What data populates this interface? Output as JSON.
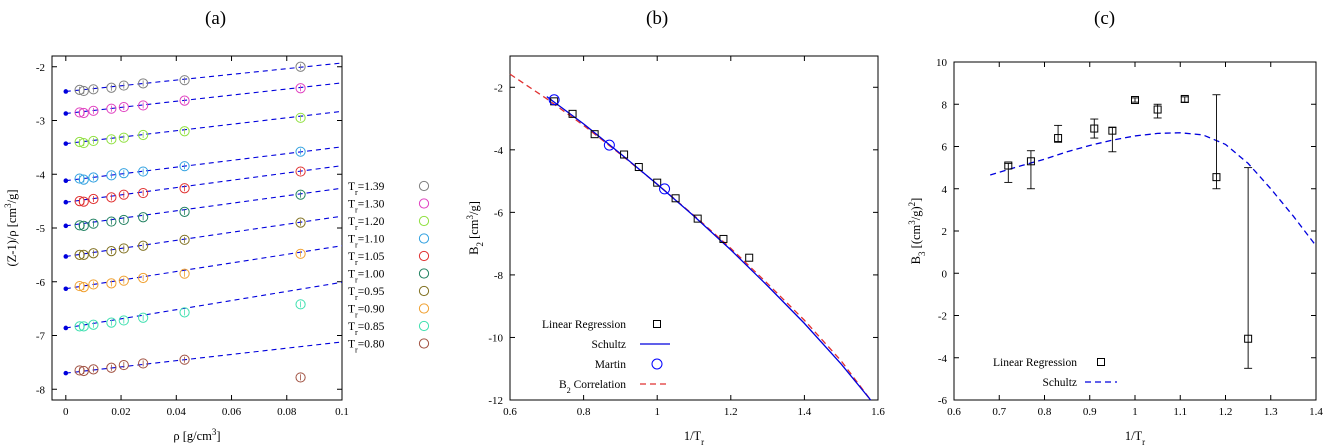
{
  "panels": {
    "a": "(a)",
    "b": "(b)",
    "c": "(c)"
  },
  "chart_data": [
    {
      "type": "scatter",
      "panel": "(a)",
      "xlabel": "ρ [g/cm³]",
      "ylabel": "(Z-1)/ρ [cm³/g]",
      "xlim": [
        -0.005,
        0.1
      ],
      "ylim": [
        -8.2,
        -1.8
      ],
      "x_ticks": [
        "0",
        "0.02",
        "0.04",
        "0.06",
        "0.08",
        "0.1"
      ],
      "y_ticks": [
        "-2",
        "-3",
        "-4",
        "-5",
        "-6",
        "-7",
        "-8"
      ],
      "legend_position": "right",
      "x": [
        0.005,
        0.0065,
        0.01,
        0.0165,
        0.021,
        0.028,
        0.043,
        0.085
      ],
      "series": [
        {
          "name": "Tr=1.39",
          "label_base": "T",
          "label_sub": "r",
          "label_rest": "=1.39",
          "color": "#7f7f7f",
          "intercept": -2.46,
          "slope": 5.3,
          "values": [
            -2.43,
            -2.45,
            -2.42,
            -2.39,
            -2.35,
            -2.31,
            -2.25,
            -2.0
          ]
        },
        {
          "name": "Tr=1.30",
          "label_base": "T",
          "label_sub": "r",
          "label_rest": "=1.30",
          "color": "#e040c0",
          "intercept": -2.87,
          "slope": 5.7,
          "values": [
            -2.85,
            -2.86,
            -2.82,
            -2.78,
            -2.75,
            -2.72,
            -2.63,
            -2.4
          ]
        },
        {
          "name": "Tr=1.20",
          "label_base": "T",
          "label_sub": "r",
          "label_rest": "=1.20",
          "color": "#90e040",
          "intercept": -3.43,
          "slope": 6.0,
          "values": [
            -3.4,
            -3.42,
            -3.38,
            -3.35,
            -3.32,
            -3.27,
            -3.2,
            -2.95
          ]
        },
        {
          "name": "Tr=1.10",
          "label_base": "T",
          "label_sub": "r",
          "label_rest": "=1.10",
          "color": "#30a0e0",
          "intercept": -4.12,
          "slope": 6.3,
          "values": [
            -4.08,
            -4.1,
            -4.06,
            -4.02,
            -3.98,
            -3.95,
            -3.85,
            -3.58
          ]
        },
        {
          "name": "Tr=1.05",
          "label_base": "T",
          "label_sub": "r",
          "label_rest": "=1.05",
          "color": "#e03030",
          "intercept": -4.52,
          "slope": 6.8,
          "values": [
            -4.5,
            -4.51,
            -4.46,
            -4.43,
            -4.38,
            -4.35,
            -4.26,
            -3.95
          ]
        },
        {
          "name": "Tr=1.00",
          "label_base": "T",
          "label_sub": "r",
          "label_rest": "=1.00",
          "color": "#208060",
          "intercept": -4.96,
          "slope": 7.0,
          "values": [
            -4.95,
            -4.96,
            -4.92,
            -4.88,
            -4.85,
            -4.8,
            -4.7,
            -4.38
          ]
        },
        {
          "name": "Tr=0.95",
          "label_base": "T",
          "label_sub": "r",
          "label_rest": "=0.95",
          "color": "#807020",
          "intercept": -5.53,
          "slope": 7.5,
          "values": [
            -5.5,
            -5.5,
            -5.47,
            -5.43,
            -5.38,
            -5.33,
            -5.22,
            -4.9
          ]
        },
        {
          "name": "Tr=0.90",
          "label_base": "T",
          "label_sub": "r",
          "label_rest": "=0.90",
          "color": "#f0a030",
          "intercept": -6.13,
          "slope": 8.0,
          "values": [
            -6.08,
            -6.1,
            -6.05,
            -6.03,
            -5.98,
            -5.93,
            -5.85,
            -5.48
          ]
        },
        {
          "name": "Tr=0.85",
          "label_base": "T",
          "label_sub": "r",
          "label_rest": "=0.85",
          "color": "#40e0b0",
          "intercept": -6.86,
          "slope": 8.5,
          "values": [
            -6.83,
            -6.83,
            -6.8,
            -6.76,
            -6.72,
            -6.67,
            -6.57,
            -6.42
          ]
        },
        {
          "name": "Tr=0.80",
          "label_base": "T",
          "label_sub": "r",
          "label_rest": "=0.80",
          "color": "#a05040",
          "intercept": -7.7,
          "slope": 5.8,
          "values": [
            -7.65,
            -7.66,
            -7.63,
            -7.6,
            -7.55,
            -7.52,
            -7.45,
            -7.78
          ]
        }
      ]
    },
    {
      "type": "line",
      "panel": "(b)",
      "xlabel": "1/Tr",
      "ylabel": "B₂ [cm³/g]",
      "xlim": [
        0.6,
        1.6
      ],
      "ylim": [
        -12,
        -1
      ],
      "x_ticks": [
        "0.6",
        "0.8",
        "1",
        "1.2",
        "1.4",
        "1.6"
      ],
      "y_ticks": [
        "-2",
        "-4",
        "-6",
        "-8",
        "-10",
        "-12"
      ],
      "legend_position": "bottom-left",
      "series": [
        {
          "name": "Linear Regression",
          "marker": "square",
          "color": "#000000",
          "x": [
            0.72,
            0.77,
            0.83,
            0.91,
            0.95,
            1.0,
            1.05,
            1.11,
            1.18,
            1.25
          ],
          "y": [
            -2.45,
            -2.85,
            -3.5,
            -4.15,
            -4.55,
            -5.05,
            -5.55,
            -6.2,
            -6.85,
            -7.45
          ]
        },
        {
          "name": "Schultz",
          "style": "solid",
          "color": "#0000dd",
          "x": [
            0.7,
            0.8,
            0.9,
            1.0,
            1.1,
            1.2,
            1.3,
            1.4,
            1.5,
            1.58
          ],
          "y": [
            -2.3,
            -3.17,
            -4.12,
            -5.1,
            -6.12,
            -7.2,
            -8.35,
            -9.55,
            -10.85,
            -12.0
          ]
        },
        {
          "name": "Martin",
          "marker": "circle",
          "color": "#0000ff",
          "x": [
            0.72,
            0.87,
            1.02
          ],
          "y": [
            -2.4,
            -3.85,
            -5.25
          ]
        },
        {
          "name": "B2 Correlation",
          "style": "dashed",
          "color": "#e03030",
          "x": [
            0.6,
            0.7,
            0.8,
            0.9,
            1.0,
            1.1,
            1.2,
            1.3,
            1.4,
            1.5,
            1.58
          ],
          "y": [
            -1.58,
            -2.37,
            -3.22,
            -4.14,
            -5.1,
            -6.1,
            -7.15,
            -8.28,
            -9.45,
            -10.75,
            -12.0
          ]
        }
      ],
      "legend": [
        {
          "label": "Linear Regression"
        },
        {
          "label": "Schultz"
        },
        {
          "label": "Martin"
        },
        {
          "label_base": "B",
          "label_sub": "2",
          "label_rest": " Correlation"
        }
      ]
    },
    {
      "type": "scatter",
      "panel": "(c)",
      "xlabel": "1/Tr",
      "ylabel": "B₃ [(cm³/g)²]",
      "xlim": [
        0.6,
        1.4
      ],
      "ylim": [
        -6,
        10
      ],
      "x_ticks": [
        "0.6",
        "0.7",
        "0.8",
        "0.9",
        "1",
        "1.1",
        "1.2",
        "1.3",
        "1.4"
      ],
      "y_ticks": [
        "10",
        "8",
        "6",
        "4",
        "2",
        "0",
        "-2",
        "-4",
        "-6"
      ],
      "legend_position": "bottom-left",
      "series": [
        {
          "name": "Linear Regression",
          "marker": "square",
          "color": "#000000",
          "x": [
            0.72,
            0.77,
            0.83,
            0.91,
            0.95,
            1.0,
            1.05,
            1.11,
            1.18,
            1.25
          ],
          "y": [
            5.1,
            5.3,
            6.4,
            6.85,
            6.75,
            8.2,
            7.75,
            8.25,
            4.55,
            -3.1
          ],
          "err_low": [
            4.3,
            4.0,
            6.2,
            6.4,
            5.75,
            8.1,
            7.35,
            8.1,
            4.0,
            -4.5
          ],
          "err_high": [
            5.2,
            5.8,
            7.0,
            7.3,
            6.9,
            8.3,
            8.0,
            8.35,
            8.45,
            5.0
          ]
        },
        {
          "name": "Schultz",
          "style": "dashed",
          "color": "#0000dd",
          "x": [
            0.68,
            0.75,
            0.8,
            0.85,
            0.9,
            0.95,
            1.0,
            1.05,
            1.1,
            1.15,
            1.2,
            1.25,
            1.3,
            1.35,
            1.4
          ],
          "y": [
            4.65,
            5.1,
            5.4,
            5.75,
            6.05,
            6.3,
            6.5,
            6.62,
            6.65,
            6.55,
            6.1,
            5.2,
            4.0,
            2.7,
            1.3
          ]
        }
      ],
      "legend": [
        {
          "label": "Linear Regression"
        },
        {
          "label": "Schultz"
        }
      ]
    }
  ]
}
